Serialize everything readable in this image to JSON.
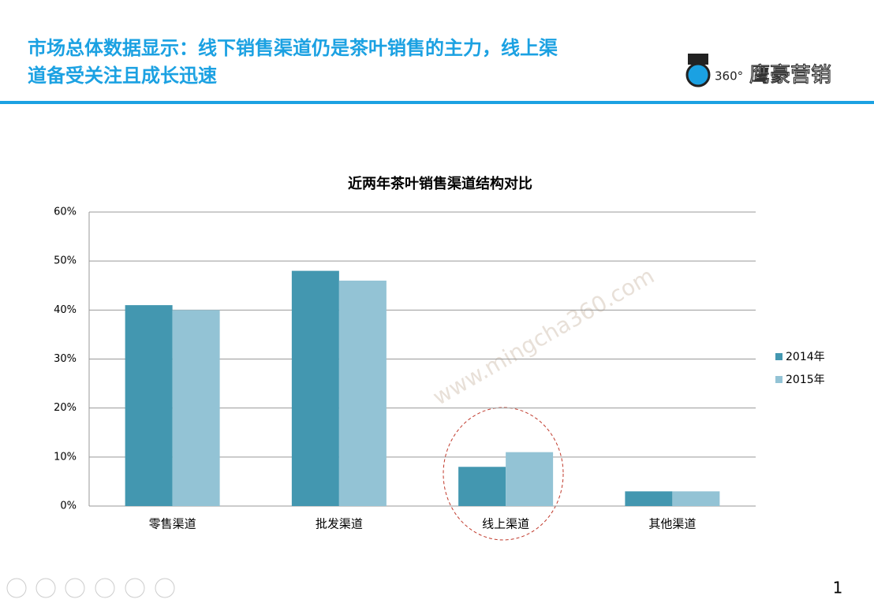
{
  "slide": {
    "title_lines": [
      "市场总体数据显示：线下销售渠道仍是茶叶销售的主力，线上渠",
      "道备受关注且成长迅速"
    ],
    "logo": "360°",
    "brand": "鹰豪营销",
    "watermark": "www.mingcha360.com",
    "page_number": "1"
  },
  "chart_data": {
    "type": "bar",
    "title": "近两年茶叶销售渠道结构对比",
    "categories": [
      "零售渠道",
      "批发渠道",
      "线上渠道",
      "其他渠道"
    ],
    "series": [
      {
        "name": "2014年",
        "color": "#4397b0",
        "values": [
          41,
          48,
          8,
          3
        ]
      },
      {
        "name": "2015年",
        "color": "#93c3d5",
        "values": [
          40,
          46,
          11,
          3
        ]
      }
    ],
    "ylim": [
      0,
      60
    ],
    "yticks": [
      {
        "value": 0,
        "label": "0%"
      },
      {
        "value": 10,
        "label": "10%"
      },
      {
        "value": 20,
        "label": "20%"
      },
      {
        "value": 30,
        "label": "30%"
      },
      {
        "value": 40,
        "label": "40%"
      },
      {
        "value": 50,
        "label": "50%"
      },
      {
        "value": 60,
        "label": "60%"
      }
    ],
    "grid": true,
    "legend": "right"
  }
}
